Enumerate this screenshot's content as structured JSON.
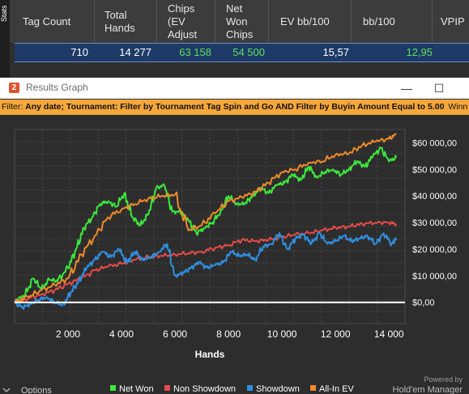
{
  "sidebar": {
    "label": "Stats"
  },
  "table": {
    "headers": [
      "Tag Count",
      "Total Hands",
      "Chips (EV Adjust",
      "Net Won Chips",
      "EV bb/100",
      "bb/100",
      "VPIP"
    ],
    "row": [
      "710",
      "14 277",
      "63 158",
      "54 500",
      "15,57",
      "12,95",
      ""
    ]
  },
  "window": {
    "title": "Results Graph",
    "icon": "2",
    "minimize": "—",
    "maximize": "☐"
  },
  "filter": {
    "label": "Filter:",
    "value": "Any date; Tournament: Filter by Tournament Tag  Spin and Go AND Filter by Buyin Amount Equal to 5.00",
    "overflow": "Winn"
  },
  "chart_data": {
    "type": "line",
    "xlabel": "Hands",
    "ylabel": "",
    "xlim": [
      0,
      14600
    ],
    "ylim": [
      -8000,
      65000
    ],
    "x_ticks": [
      2000,
      4000,
      6000,
      8000,
      10000,
      12000,
      14000
    ],
    "x_tick_labels": [
      "2 000",
      "4 000",
      "6 000",
      "8 000",
      "10 000",
      "12 000",
      "14 000"
    ],
    "y_ticks": [
      0,
      10000,
      20000,
      30000,
      40000,
      50000,
      60000
    ],
    "y_tick_labels": [
      "$0,00",
      "$10 000,00",
      "$20 000,00",
      "$30 000,00",
      "$40 000,00",
      "$50 000,00",
      "$60 000,00"
    ],
    "grid": true,
    "legend_position": "bottom",
    "series": [
      {
        "name": "Net Won",
        "color": "#3de83d",
        "x": [
          0,
          400,
          700,
          1000,
          1300,
          1600,
          2000,
          2300,
          2600,
          2900,
          3200,
          3500,
          3800,
          4100,
          4400,
          4700,
          5000,
          5300,
          5600,
          5900,
          6200,
          6500,
          6800,
          7100,
          7400,
          7700,
          8000,
          8300,
          8600,
          8900,
          9200,
          9500,
          9800,
          10100,
          10400,
          10700,
          11000,
          11300,
          11600,
          11900,
          12200,
          12500,
          12800,
          13100,
          13400,
          13700,
          14000,
          14277
        ],
        "values": [
          0,
          3000,
          9000,
          5000,
          8500,
          8000,
          13000,
          20000,
          28000,
          32000,
          37000,
          38000,
          36000,
          41000,
          32000,
          29000,
          33000,
          43000,
          44000,
          34000,
          34000,
          31000,
          26000,
          28000,
          30000,
          34000,
          40000,
          37000,
          37000,
          40000,
          43000,
          41000,
          44000,
          45000,
          48000,
          46000,
          51000,
          47000,
          49000,
          50000,
          48000,
          50000,
          53000,
          51000,
          55000,
          58000,
          53000,
          54500
        ]
      },
      {
        "name": "Non Showdown",
        "color": "#e84a4a",
        "x": [
          0,
          500,
          1000,
          1500,
          2000,
          2500,
          3000,
          3500,
          4000,
          4500,
          5000,
          5500,
          6000,
          6500,
          7000,
          7500,
          8000,
          8500,
          9000,
          9500,
          10000,
          10500,
          11000,
          11500,
          12000,
          12500,
          13000,
          13500,
          14000,
          14277
        ],
        "values": [
          0,
          1500,
          3000,
          4500,
          7000,
          9000,
          12000,
          13500,
          14500,
          16000,
          17000,
          17500,
          18000,
          18500,
          19000,
          20500,
          21500,
          23500,
          23000,
          23500,
          24500,
          25500,
          26000,
          27000,
          28000,
          28500,
          29500,
          30000,
          30000,
          29500
        ]
      },
      {
        "name": "Showdown",
        "color": "#2f8fe0",
        "x": [
          0,
          300,
          600,
          900,
          1200,
          1500,
          1800,
          2100,
          2400,
          2700,
          3000,
          3300,
          3600,
          3900,
          4200,
          4500,
          4800,
          5100,
          5400,
          5700,
          6000,
          6300,
          6600,
          6900,
          7200,
          7500,
          7800,
          8100,
          8400,
          8700,
          9000,
          9300,
          9600,
          9900,
          10200,
          10500,
          10800,
          11100,
          11400,
          11700,
          12000,
          12300,
          12600,
          12900,
          13200,
          13500,
          13800,
          14100,
          14277
        ],
        "values": [
          0,
          -2000,
          -500,
          1000,
          2000,
          0,
          -1000,
          3500,
          8000,
          13000,
          16000,
          19000,
          17000,
          20000,
          15000,
          19000,
          16000,
          17000,
          19000,
          22000,
          10000,
          11000,
          13000,
          15000,
          13000,
          14000,
          15000,
          19000,
          17500,
          18000,
          16000,
          21000,
          22000,
          26000,
          20000,
          24000,
          25500,
          22000,
          26000,
          22000,
          23000,
          25000,
          23000,
          24000,
          25000,
          22000,
          26000,
          22000,
          24000
        ]
      },
      {
        "name": "All-In EV",
        "color": "#f08a2a",
        "x": [
          0,
          500,
          1000,
          1500,
          2000,
          2500,
          3000,
          3500,
          4000,
          4500,
          5000,
          5500,
          6000,
          6500,
          7000,
          7500,
          8000,
          8500,
          9000,
          9500,
          10000,
          10500,
          11000,
          11500,
          12000,
          12500,
          13000,
          13500,
          14000,
          14277
        ],
        "values": [
          0,
          2000,
          4500,
          6500,
          9000,
          18000,
          25000,
          32000,
          35000,
          37000,
          39000,
          40000,
          40500,
          27000,
          29000,
          33500,
          38000,
          39500,
          41500,
          45000,
          49000,
          50000,
          52500,
          53000,
          55500,
          56000,
          59000,
          60500,
          61500,
          63158
        ]
      }
    ]
  },
  "watermark": {
    "line1": "Powered by",
    "line2": "Hold'em Manager"
  },
  "options": {
    "label": "Options"
  }
}
